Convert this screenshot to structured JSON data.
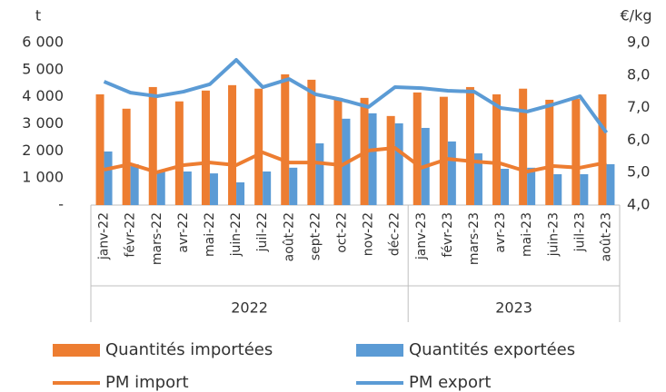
{
  "chart_data": {
    "type": "bar_line_combo",
    "y_title": "t",
    "y2_title": "€/kg",
    "category_groups": [
      {
        "label": "2022",
        "categories": [
          "janv-22",
          "févr-22",
          "mars-22",
          "avr-22",
          "mai-22",
          "juin-22",
          "juil-22",
          "août-22",
          "sept-22",
          "oct-22",
          "nov-22",
          "déc-22"
        ]
      },
      {
        "label": "2023",
        "categories": [
          "janv-23",
          "févr-23",
          "mars-23",
          "avr-23",
          "mai-23",
          "juin-23",
          "juil-23",
          "août-23"
        ]
      }
    ],
    "series": [
      {
        "name": "Quantités importées",
        "type": "bar",
        "color": "#ED7D31",
        "axis": "y",
        "values": [
          4090,
          3560,
          4360,
          3830,
          4230,
          4430,
          4300,
          4830,
          4630,
          3890,
          3960,
          3290,
          4160,
          4000,
          4360,
          4090,
          4300,
          3890,
          3920,
          4090
        ]
      },
      {
        "name": "Quantités exportées",
        "type": "bar",
        "color": "#5B9BD5",
        "axis": "y",
        "values": [
          1980,
          1510,
          1280,
          1240,
          1170,
          840,
          1240,
          1380,
          2280,
          3190,
          3390,
          3020,
          2850,
          2350,
          1910,
          1340,
          1380,
          1140,
          1140,
          1510
        ]
      },
      {
        "name": "PM import",
        "type": "line",
        "color": "#ED7D31",
        "axis": "y2",
        "values": [
          5.09,
          5.26,
          5.01,
          5.23,
          5.31,
          5.23,
          5.62,
          5.31,
          5.31,
          5.23,
          5.68,
          5.76,
          5.15,
          5.42,
          5.34,
          5.28,
          5.03,
          5.2,
          5.15,
          5.31
        ]
      },
      {
        "name": "PM export",
        "type": "line",
        "color": "#5B9BD5",
        "axis": "y2",
        "values": [
          7.8,
          7.46,
          7.35,
          7.49,
          7.72,
          8.47,
          7.63,
          7.88,
          7.41,
          7.24,
          7.02,
          7.63,
          7.6,
          7.52,
          7.49,
          6.99,
          6.88,
          7.1,
          7.35,
          6.23
        ]
      }
    ],
    "ylim": [
      0,
      6000
    ],
    "yticks": [
      {
        "value": 0,
        "label": "-"
      },
      {
        "value": 1000,
        "label": "1 000"
      },
      {
        "value": 2000,
        "label": "2 000"
      },
      {
        "value": 3000,
        "label": "3 000"
      },
      {
        "value": 4000,
        "label": "4 000"
      },
      {
        "value": 5000,
        "label": "5 000"
      },
      {
        "value": 6000,
        "label": "6 000"
      }
    ],
    "y2lim": [
      4,
      9
    ],
    "y2ticks": [
      {
        "value": 4,
        "label": "4,0"
      },
      {
        "value": 5,
        "label": "5,0"
      },
      {
        "value": 6,
        "label": "6,0"
      },
      {
        "value": 7,
        "label": "7,0"
      },
      {
        "value": 8,
        "label": "8,0"
      },
      {
        "value": 9,
        "label": "9,0"
      }
    ],
    "grid": false,
    "legend": "bottom"
  }
}
